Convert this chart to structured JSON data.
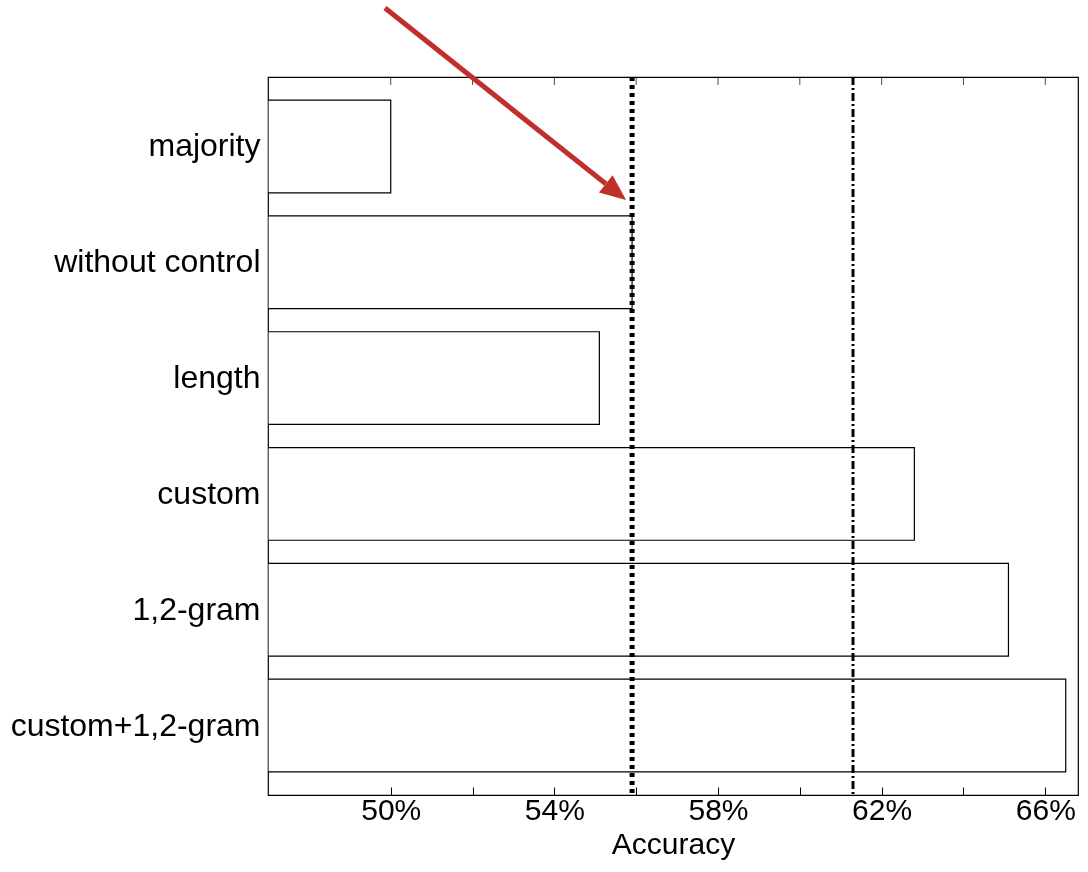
{
  "chart_data": {
    "type": "bar",
    "orientation": "horizontal",
    "xlabel": "Accuracy",
    "categories": [
      "majority",
      "without control",
      "length",
      "custom",
      "1,2-gram",
      "custom+1,2-gram"
    ],
    "values": [
      50.0,
      55.9,
      55.1,
      62.8,
      65.1,
      66.5
    ],
    "color": "#ffffff",
    "xlim": [
      47,
      66.8
    ],
    "xticks": [
      {
        "value": 50,
        "label": "50%"
      },
      {
        "value": 52,
        "label": null
      },
      {
        "value": 54,
        "label": "54%"
      },
      {
        "value": 56,
        "label": null
      },
      {
        "value": 58,
        "label": "58%"
      },
      {
        "value": 60,
        "label": null
      },
      {
        "value": 62,
        "label": "62%"
      },
      {
        "value": 64,
        "label": null
      },
      {
        "value": 66,
        "label": "66%"
      }
    ],
    "ref_lines": [
      {
        "axis": "x",
        "value": 55.9,
        "color": "#000000",
        "line_style": "dotted"
      },
      {
        "axis": "x",
        "value": 61.3,
        "color": "#000000",
        "line_style": "dashed"
      }
    ],
    "grid": false
  }
}
